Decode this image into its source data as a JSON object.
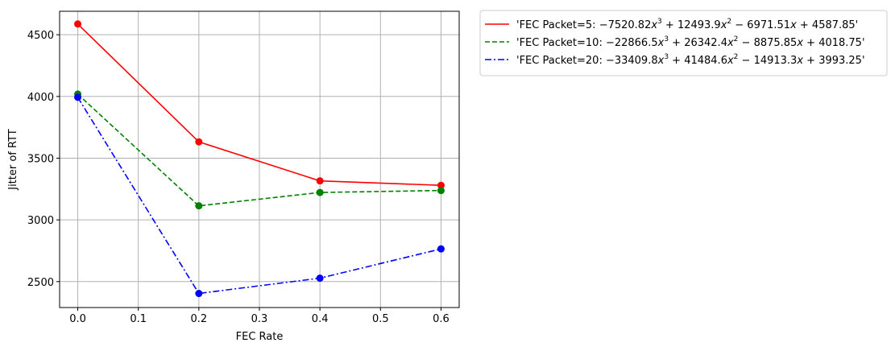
{
  "chart_data": {
    "type": "line",
    "xlabel": "FEC Rate",
    "ylabel": "Jitter of RTT",
    "xlim": [
      -0.03,
      0.63
    ],
    "ylim": [
      2290,
      4690
    ],
    "xticks": [
      0.0,
      0.1,
      0.2,
      0.3,
      0.4,
      0.5,
      0.6
    ],
    "xtick_labels": [
      "0.0",
      "0.1",
      "0.2",
      "0.3",
      "0.4",
      "0.5",
      "0.6"
    ],
    "yticks": [
      2500,
      3000,
      3500,
      4000,
      4500
    ],
    "ytick_labels": [
      "2500",
      "3000",
      "3500",
      "4000",
      "4500"
    ],
    "grid": true,
    "legend_position": "outside-upper-right",
    "x": [
      0.0,
      0.2,
      0.4,
      0.6
    ],
    "series": [
      {
        "name": "'FEC Packet=5: −7520.82x³ + 12493.9x² − 6971.51x + 4587.85'",
        "legend_parts": [
          "'FEC Packet=5: ",
          "−7520.82",
          "x",
          "3",
          " + 12493.9",
          "x",
          "2",
          " − 6971.51",
          "x",
          " + 4587.85'"
        ],
        "color": "#ff0000",
        "line_style": "solid",
        "values": [
          4587,
          3632,
          3316,
          3280
        ]
      },
      {
        "name": "'FEC Packet=10: −22866.5x³ + 26342.4x² − 8875.85x + 4018.75'",
        "legend_parts": [
          "'FEC Packet=10: ",
          "−22866.5",
          "x",
          "3",
          " + 26342.4",
          "x",
          "2",
          " − 8875.85",
          "x",
          " + 4018.75'"
        ],
        "color": "#008000",
        "line_style": "dashed",
        "values": [
          4019,
          3114,
          3222,
          3238
        ]
      },
      {
        "name": "'FEC Packet=20: −33409.8x³ + 41484.6x² − 14913.3x + 3993.25'",
        "legend_parts": [
          "'FEC Packet=20: ",
          "−33409.8",
          "x",
          "3",
          " + 41484.6",
          "x",
          "2",
          " − 14913.3",
          "x",
          " + 3993.25'"
        ],
        "color": "#0000ff",
        "line_style": "dashdot",
        "values": [
          3993,
          2404,
          2528,
          2765
        ]
      }
    ]
  }
}
